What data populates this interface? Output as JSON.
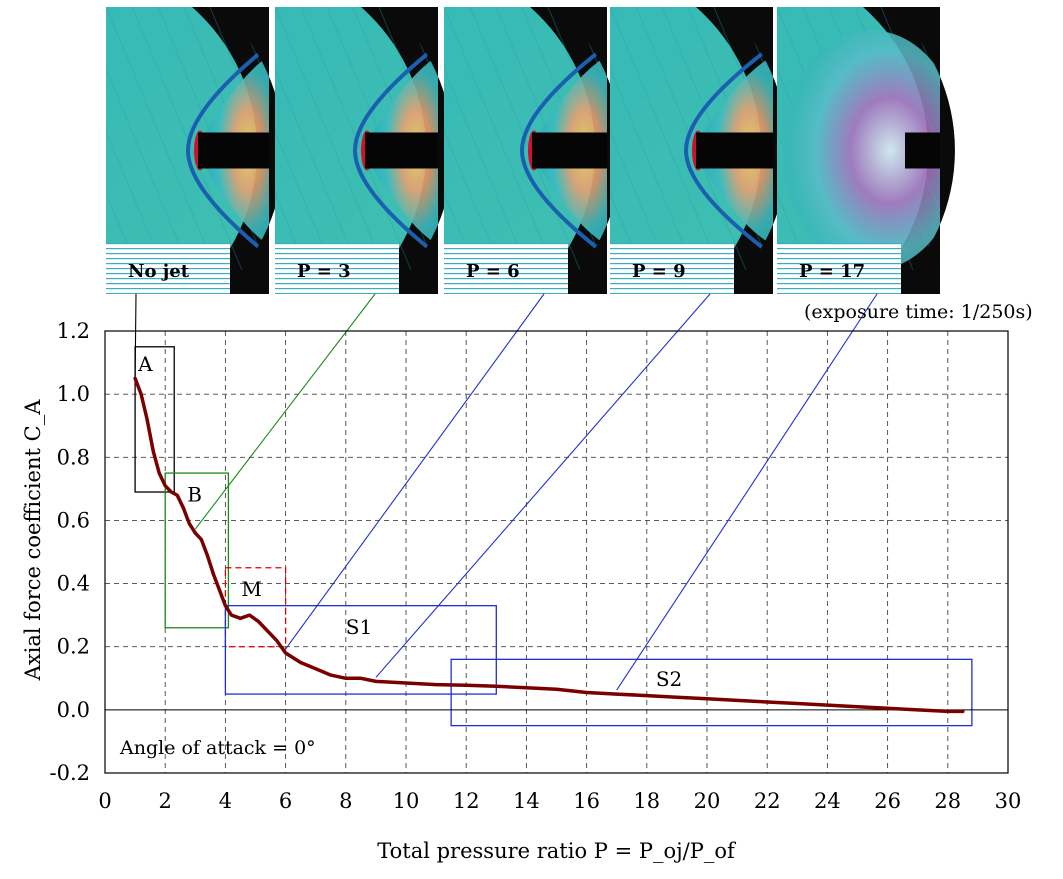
{
  "chart_data": {
    "type": "line",
    "title": "",
    "xlabel": "Total pressure ratio P = P_oj/P_of",
    "ylabel": "Axial force coefficient C_A",
    "xlim": [
      0,
      30
    ],
    "ylim": [
      -0.2,
      1.2
    ],
    "x_ticks": [
      "0",
      "2",
      "4",
      "6",
      "8",
      "10",
      "12",
      "14",
      "16",
      "18",
      "20",
      "22",
      "24",
      "26",
      "28",
      "30"
    ],
    "y_ticks": [
      "-0.2",
      "0.0",
      "0.2",
      "0.4",
      "0.6",
      "0.8",
      "1.0",
      "1.2"
    ],
    "grid": true,
    "line_color": "#7a0000",
    "series": [
      {
        "x": [
          1.0,
          1.2,
          1.4,
          1.6,
          1.8,
          2.0,
          2.2,
          2.4,
          2.6,
          2.8,
          3.0,
          3.2,
          3.4,
          3.6,
          3.8,
          4.0,
          4.2,
          4.5,
          4.8,
          5.1,
          5.4,
          5.7,
          6.0,
          6.5,
          7.0,
          7.5,
          8.0,
          8.5,
          9.0,
          10.0,
          11.0,
          12.0,
          13.0,
          14.0,
          15.0,
          16.0,
          17.0,
          18.0,
          19.0,
          20.0,
          21.0,
          22.0,
          23.0,
          24.0,
          25.0,
          26.0,
          27.0,
          28.0,
          28.5
        ],
        "y": [
          1.05,
          1.0,
          0.92,
          0.82,
          0.75,
          0.71,
          0.69,
          0.68,
          0.64,
          0.59,
          0.56,
          0.54,
          0.49,
          0.43,
          0.38,
          0.33,
          0.3,
          0.29,
          0.3,
          0.28,
          0.25,
          0.22,
          0.18,
          0.15,
          0.13,
          0.11,
          0.1,
          0.1,
          0.09,
          0.085,
          0.08,
          0.078,
          0.075,
          0.07,
          0.065,
          0.055,
          0.05,
          0.045,
          0.04,
          0.035,
          0.03,
          0.025,
          0.02,
          0.015,
          0.01,
          0.005,
          0.0,
          -0.005,
          -0.005
        ]
      }
    ],
    "regions": [
      {
        "label": "A",
        "x0": 1.0,
        "x1": 2.3,
        "y0": 0.69,
        "y1": 1.15,
        "color": "#000000",
        "dashed": false
      },
      {
        "label": "B",
        "x0": 2.0,
        "x1": 4.1,
        "y0": 0.26,
        "y1": 0.75,
        "color": "#1a8a1a",
        "dashed": false
      },
      {
        "label": "M",
        "x0": 4.0,
        "x1": 6.0,
        "y0": 0.2,
        "y1": 0.45,
        "color": "#e00000",
        "dashed": true
      },
      {
        "label": "S1",
        "x0": 4.0,
        "x1": 13.0,
        "y0": 0.05,
        "y1": 0.33,
        "color": "#2030d0",
        "dashed": false
      },
      {
        "label": "S2",
        "x0": 11.5,
        "x1": 28.8,
        "y0": -0.05,
        "y1": 0.16,
        "color": "#2030d0",
        "dashed": false
      }
    ],
    "annotation": "Angle of attack = 0°",
    "exposure_note": "(exposure time: 1/250s)",
    "photos": [
      {
        "label": "No jet",
        "p": 1.0,
        "line_color": "#000000"
      },
      {
        "label": "P = 3",
        "p": 3.0,
        "line_color": "#1a8a1a"
      },
      {
        "label": "P = 6",
        "p": 6.0,
        "line_color": "#2030d0"
      },
      {
        "label": "P = 9",
        "p": 9.0,
        "line_color": "#2030d0"
      },
      {
        "label": "P = 17",
        "p": 17.0,
        "line_color": "#2030d0"
      }
    ]
  }
}
